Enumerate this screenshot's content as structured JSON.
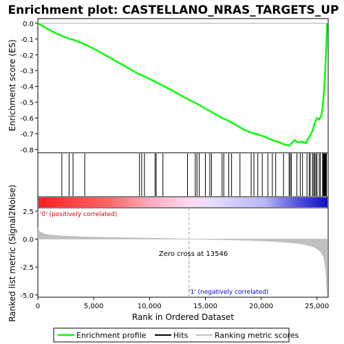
{
  "chart_data": {
    "type": "line",
    "title": "Enrichment plot: CASTELLANO_NRAS_TARGETS_UP",
    "xlabel": "Rank in Ordered Dataset",
    "x_ticks": [
      0,
      5000,
      10000,
      15000,
      20000,
      25000
    ],
    "x_tick_labels": [
      "0",
      "5,000",
      "10,000",
      "15,000",
      "20,000",
      "25,000"
    ],
    "xlim": [
      0,
      26000
    ],
    "grid": false,
    "panels": [
      {
        "name": "enrichment",
        "ylabel": "Enrichment score (ES)",
        "ylim": [
          -0.82,
          0.03
        ],
        "y_ticks": [
          0.0,
          -0.1,
          -0.2,
          -0.3,
          -0.4,
          -0.5,
          -0.6,
          -0.7,
          -0.8
        ],
        "y_tick_labels": [
          "0.0",
          "-0.1",
          "-0.2",
          "-0.3",
          "-0.4",
          "-0.5",
          "-0.6",
          "-0.7",
          "-0.8"
        ],
        "series": [
          {
            "name": "Enrichment profile",
            "color": "#00ff00",
            "x": [
              0,
              500,
              1000,
              1500,
              2000,
              2500,
              2900,
              3200,
              4100,
              5000,
              6000,
              7000,
              8000,
              9000,
              9500,
              10500,
              11200,
              12000,
              13000,
              13400,
              14000,
              14500,
              15000,
              15500,
              16500,
              17000,
              17500,
              18000,
              18500,
              19000,
              19200,
              19500,
              20000,
              20500,
              21000,
              21200,
              21500,
              22000,
              22500,
              22700,
              23000,
              23300,
              23600,
              24000,
              24200,
              24400,
              24600,
              24800,
              25000,
              25200,
              25400,
              25500,
              25600,
              25700,
              25800,
              25850,
              25900
            ],
            "y": [
              0.0,
              -0.02,
              -0.04,
              -0.06,
              -0.075,
              -0.09,
              -0.1,
              -0.105,
              -0.13,
              -0.16,
              -0.2,
              -0.24,
              -0.28,
              -0.32,
              -0.335,
              -0.37,
              -0.395,
              -0.425,
              -0.465,
              -0.48,
              -0.5,
              -0.52,
              -0.54,
              -0.56,
              -0.6,
              -0.615,
              -0.635,
              -0.655,
              -0.675,
              -0.69,
              -0.695,
              -0.7,
              -0.71,
              -0.725,
              -0.74,
              -0.745,
              -0.75,
              -0.765,
              -0.775,
              -0.76,
              -0.74,
              -0.755,
              -0.75,
              -0.76,
              -0.73,
              -0.71,
              -0.68,
              -0.63,
              -0.6,
              -0.61,
              -0.58,
              -0.53,
              -0.45,
              -0.35,
              -0.2,
              -0.1,
              0.0
            ]
          }
        ]
      },
      {
        "name": "hits",
        "series": [
          {
            "name": "Hits",
            "color": "#000000",
            "x": [
              2150,
              2800,
              3150,
              4200,
              9100,
              9300,
              9550,
              10500,
              10600,
              11200,
              13400,
              14100,
              14250,
              14450,
              15000,
              15400,
              15550,
              16500,
              16650,
              17100,
              17350,
              18100,
              19100,
              19350,
              19700,
              20100,
              20600,
              21000,
              21300,
              22000,
              22500,
              22600,
              22700,
              23200,
              23500,
              23700,
              24100,
              24300,
              24400,
              24600,
              24700,
              24800,
              24900,
              25000,
              25200,
              25300,
              25500,
              25550,
              25600,
              25650,
              25700,
              25750,
              25800,
              25850
            ]
          }
        ]
      },
      {
        "name": "ranked-metric",
        "ylabel": "Ranked list metric (Signal2Noise)",
        "ylim": [
          -5.2,
          2.8
        ],
        "y_ticks": [
          2.5,
          0.0,
          -2.5,
          -5.0
        ],
        "y_tick_labels": [
          "2.5",
          "0.0",
          "-2.5",
          "-5.0"
        ],
        "series": [
          {
            "name": "Ranking metric scores",
            "color": "#c0c0c0",
            "x": [
              0,
              100,
              300,
              600,
              1000,
              2000,
              4000,
              8000,
              12000,
              13546,
              16000,
              19000,
              21000,
              23000,
              24000,
              24800,
              25300,
              25600,
              25800,
              25900
            ],
            "y": [
              1.0,
              0.75,
              0.6,
              0.45,
              0.38,
              0.28,
              0.2,
              0.12,
              0.05,
              0.0,
              -0.05,
              -0.12,
              -0.2,
              -0.35,
              -0.5,
              -0.75,
              -1.1,
              -1.6,
              -3.0,
              -5.0
            ]
          }
        ],
        "annotations": [
          {
            "text": "Zero cross at 13546",
            "x": 13546
          },
          {
            "text": "'0' (positively correlated)"
          },
          {
            "text": "'1' (negatively correlated)"
          }
        ]
      }
    ],
    "legend": {
      "placement": "bottom",
      "entries": [
        "Enrichment profile",
        "Hits",
        "Ranking metric scores"
      ]
    },
    "colors": {
      "profile": "#00ff00",
      "hits": "#000000",
      "metric": "#c0c0c0",
      "positive_label": "#cc0000",
      "negative_label": "#0000cc"
    }
  }
}
